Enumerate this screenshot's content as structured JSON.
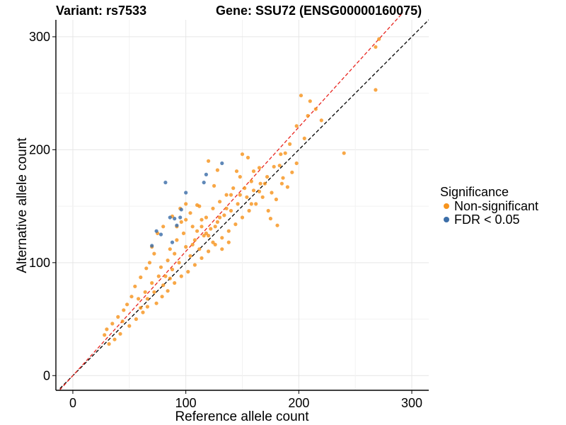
{
  "chart_data": {
    "type": "scatter",
    "title_left": "Variant: rs7533",
    "title_right": "Gene: SSU72 (ENSG00000160075)",
    "xlabel": "Reference allele count",
    "ylabel": "Alternative allele count",
    "xlim": [
      -15,
      315
    ],
    "ylim": [
      -13,
      315
    ],
    "xticks": [
      0,
      100,
      200,
      300
    ],
    "yticks": [
      0,
      100,
      200,
      300
    ],
    "grid": true,
    "legend": {
      "title": "Significance",
      "position": "right",
      "entries": [
        {
          "label": "Non-significant",
          "color": "#f7941d"
        },
        {
          "label": "FDR < 0.05",
          "color": "#3c6ea8"
        }
      ]
    },
    "reference_lines": [
      {
        "name": "identity-line",
        "slope": 1.0,
        "intercept": 0,
        "color": "#000000",
        "dash": "dashed"
      },
      {
        "name": "fit-line",
        "slope": 1.1,
        "intercept": 0,
        "color": "#e8251f",
        "dash": "dashed"
      }
    ],
    "series": [
      {
        "name": "Non-significant",
        "color": "#f7941d",
        "points": [
          [
            268,
            291
          ],
          [
            271,
            298
          ],
          [
            268,
            253
          ],
          [
            240,
            197
          ],
          [
            202,
            248
          ],
          [
            208,
            230
          ],
          [
            205,
            210
          ],
          [
            210,
            243
          ],
          [
            215,
            236
          ],
          [
            220,
            226
          ],
          [
            183,
            186
          ],
          [
            188,
            197
          ],
          [
            192,
            205
          ],
          [
            198,
            221
          ],
          [
            178,
            185
          ],
          [
            185,
            170
          ],
          [
            190,
            167
          ],
          [
            173,
            146
          ],
          [
            181,
            133
          ],
          [
            175,
            139
          ],
          [
            165,
            184
          ],
          [
            170,
            170
          ],
          [
            160,
            181
          ],
          [
            155,
            193
          ],
          [
            150,
            196
          ],
          [
            148,
            176
          ],
          [
            145,
            181
          ],
          [
            140,
            160
          ],
          [
            165,
            163
          ],
          [
            158,
            152
          ],
          [
            128,
            182
          ],
          [
            120,
            190
          ],
          [
            125,
            168
          ],
          [
            110,
            151
          ],
          [
            100,
            152
          ],
          [
            95,
            148
          ],
          [
            88,
            141
          ],
          [
            80,
            132
          ],
          [
            75,
            126
          ],
          [
            70,
            114
          ],
          [
            72,
            108
          ],
          [
            68,
            100
          ],
          [
            65,
            95
          ],
          [
            60,
            87
          ],
          [
            55,
            79
          ],
          [
            52,
            70
          ],
          [
            48,
            63
          ],
          [
            45,
            58
          ],
          [
            40,
            52
          ],
          [
            35,
            46
          ],
          [
            30,
            41
          ],
          [
            28,
            36
          ],
          [
            32,
            28
          ],
          [
            37,
            32
          ],
          [
            42,
            37
          ],
          [
            50,
            44
          ],
          [
            56,
            50
          ],
          [
            62,
            56
          ],
          [
            66,
            61
          ],
          [
            74,
            64
          ],
          [
            79,
            70
          ],
          [
            84,
            75
          ],
          [
            90,
            82
          ],
          [
            96,
            88
          ],
          [
            102,
            92
          ],
          [
            108,
            98
          ],
          [
            114,
            104
          ],
          [
            120,
            110
          ],
          [
            126,
            116
          ],
          [
            132,
            122
          ],
          [
            138,
            128
          ],
          [
            144,
            134
          ],
          [
            150,
            140
          ],
          [
            156,
            146
          ],
          [
            162,
            152
          ],
          [
            168,
            158
          ],
          [
            96,
            136
          ],
          [
            104,
            144
          ],
          [
            112,
            150
          ],
          [
            118,
            140
          ],
          [
            124,
            148
          ],
          [
            130,
            154
          ],
          [
            136,
            160
          ],
          [
            142,
            166
          ],
          [
            86,
            112
          ],
          [
            92,
            120
          ],
          [
            98,
            126
          ],
          [
            106,
            132
          ],
          [
            114,
            138
          ],
          [
            122,
            130
          ],
          [
            128,
            136
          ],
          [
            134,
            142
          ],
          [
            140,
            146
          ],
          [
            146,
            152
          ],
          [
            78,
            96
          ],
          [
            84,
            102
          ],
          [
            90,
            108
          ],
          [
            100,
            114
          ],
          [
            108,
            120
          ],
          [
            116,
            124
          ],
          [
            124,
            118
          ],
          [
            132,
            112
          ],
          [
            138,
            118
          ],
          [
            82,
            88
          ],
          [
            88,
            94
          ],
          [
            94,
            100
          ],
          [
            104,
            106
          ],
          [
            112,
            112
          ],
          [
            70,
            82
          ],
          [
            76,
            88
          ],
          [
            58,
            68
          ],
          [
            64,
            74
          ],
          [
            110,
            128
          ],
          [
            118,
            126
          ],
          [
            126,
            132
          ],
          [
            152,
            166
          ],
          [
            158,
            172
          ],
          [
            92,
            132
          ],
          [
            100,
            138
          ],
          [
            106,
            116
          ],
          [
            114,
            132
          ],
          [
            120,
            124
          ],
          [
            130,
            140
          ],
          [
            136,
            148
          ],
          [
            60,
            60
          ],
          [
            66,
            68
          ],
          [
            72,
            74
          ],
          [
            80,
            80
          ],
          [
            86,
            86
          ],
          [
            44,
            48
          ],
          [
            148,
            160
          ],
          [
            154,
            158
          ],
          [
            160,
            164
          ],
          [
            166,
            170
          ],
          [
            172,
            176
          ],
          [
            176,
            162
          ],
          [
            180,
            156
          ],
          [
            186,
            175
          ],
          [
            194,
            180
          ],
          [
            198,
            188
          ],
          [
            184,
            196
          ]
        ]
      },
      {
        "name": "FDR < 0.05",
        "color": "#3c6ea8",
        "points": [
          [
            82,
            171
          ],
          [
            100,
            162
          ],
          [
            116,
            171
          ],
          [
            118,
            178
          ],
          [
            132,
            188
          ],
          [
            86,
            140
          ],
          [
            90,
            139
          ],
          [
            92,
            133
          ],
          [
            96,
            147
          ],
          [
            95,
            140
          ],
          [
            78,
            125
          ],
          [
            74,
            128
          ],
          [
            70,
            115
          ],
          [
            88,
            118
          ]
        ]
      }
    ]
  }
}
